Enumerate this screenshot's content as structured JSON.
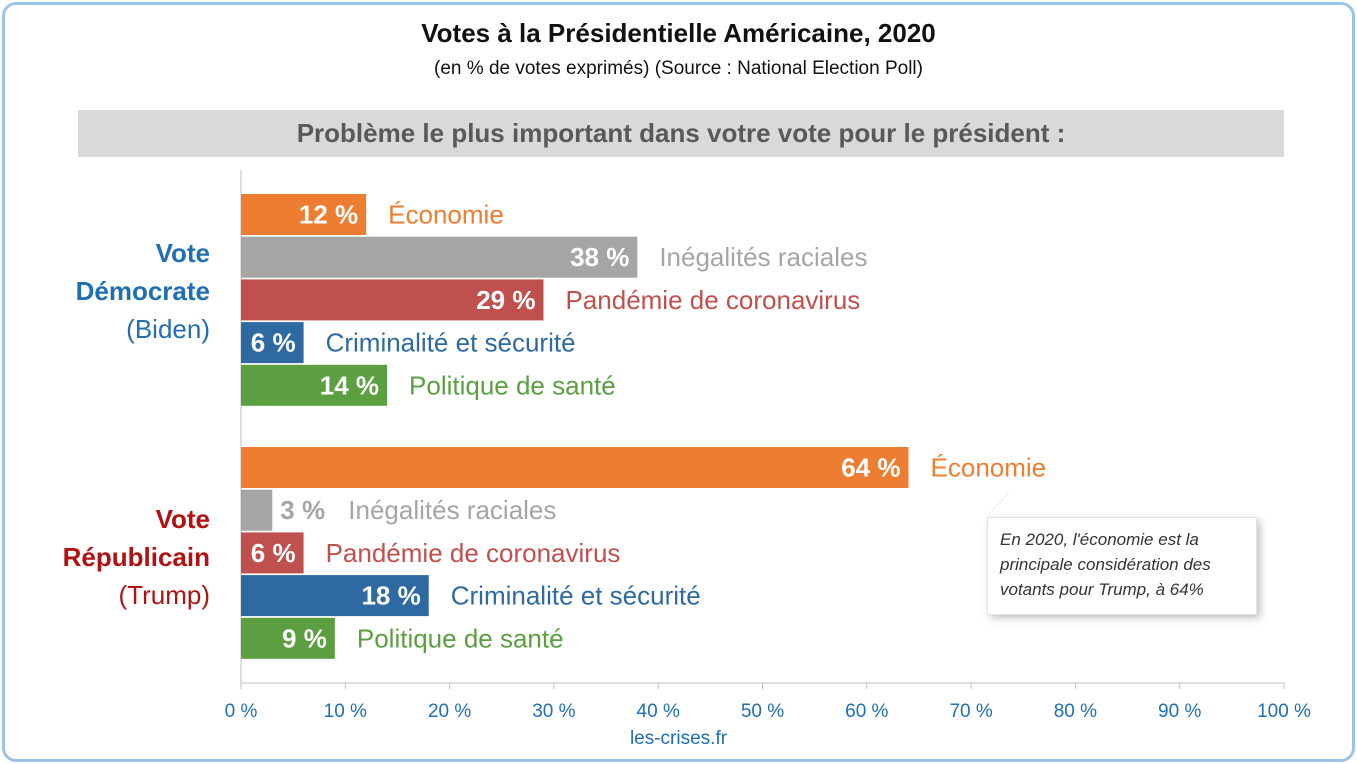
{
  "title": "Votes à la Présidentielle Américaine, 2020",
  "subtitle": "(en % de votes exprimés) (Source : National Election Poll)",
  "banner": "Problème le plus important dans votre vote pour le président :",
  "groups": {
    "dem": {
      "line1": "Vote",
      "line2": "Démocrate",
      "line3": "(Biden)"
    },
    "rep": {
      "line1": "Vote",
      "line2": "Républicain",
      "line3": "(Trump)"
    }
  },
  "note": "En 2020, l'économie est la principale considération des votants pour Trump, à 64%",
  "source": "les-crises.fr",
  "colors": {
    "economie": "#ed7d31",
    "inegalites": "#a5a5a5",
    "pandemie": "#c0504d",
    "criminalite": "#2e6aa1",
    "sante": "#5b9f41",
    "axis": "#1f6fb2"
  },
  "chart_data": {
    "type": "bar",
    "orientation": "horizontal",
    "xlim": [
      0,
      100
    ],
    "xticks": [
      "0 %",
      "10 %",
      "20 %",
      "30 %",
      "40 %",
      "50 %",
      "60 %",
      "70 %",
      "80 %",
      "90 %",
      "100 %"
    ],
    "groups": [
      {
        "name": "Vote Démocrate (Biden)",
        "bars": [
          {
            "category": "Économie",
            "value": 12,
            "label": "12 %",
            "color_key": "economie"
          },
          {
            "category": "Inégalités raciales",
            "value": 38,
            "label": "38 %",
            "color_key": "inegalites"
          },
          {
            "category": "Pandémie de coronavirus",
            "value": 29,
            "label": "29 %",
            "color_key": "pandemie"
          },
          {
            "category": "Criminalité et sécurité",
            "value": 6,
            "label": "6 %",
            "color_key": "criminalite"
          },
          {
            "category": "Politique de santé",
            "value": 14,
            "label": "14 %",
            "color_key": "sante"
          }
        ]
      },
      {
        "name": "Vote Républicain (Trump)",
        "bars": [
          {
            "category": "Économie",
            "value": 64,
            "label": "64 %",
            "color_key": "economie"
          },
          {
            "category": "Inégalités raciales",
            "value": 3,
            "label": "3 %",
            "color_key": "inegalites"
          },
          {
            "category": "Pandémie de coronavirus",
            "value": 6,
            "label": "6 %",
            "color_key": "pandemie"
          },
          {
            "category": "Criminalité et sécurité",
            "value": 18,
            "label": "18 %",
            "color_key": "criminalite"
          },
          {
            "category": "Politique de santé",
            "value": 9,
            "label": "9 %",
            "color_key": "sante"
          }
        ]
      }
    ]
  }
}
